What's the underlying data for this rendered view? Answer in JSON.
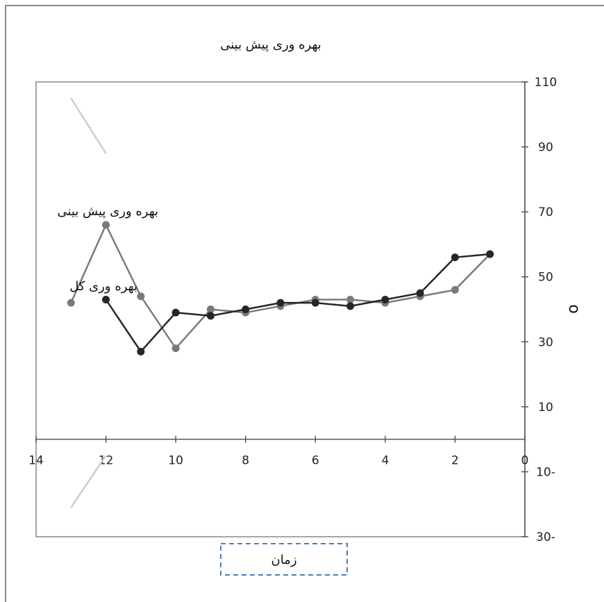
{
  "chart_data": {
    "type": "line",
    "title": "بهره وری پیش بینی",
    "xlabel": "زمان",
    "ylabel": "ο",
    "xlim": [
      0,
      14
    ],
    "ylim": [
      -30,
      110
    ],
    "x_ticks": [
      14,
      12,
      10,
      8,
      6,
      4,
      2,
      0
    ],
    "x_tick_labels": [
      "14",
      "12",
      "10",
      "8",
      "6",
      "4",
      "2",
      "0"
    ],
    "y_ticks": [
      110,
      90,
      70,
      50,
      30,
      10,
      -10,
      -30
    ],
    "y_tick_labels": [
      "110",
      "90",
      "70",
      "50",
      "30",
      "10",
      "10-",
      "30-"
    ],
    "x_reversed": true,
    "y_axis_position": "right",
    "grid": false,
    "series": [
      {
        "name": "بهره وری پیش بینی",
        "color": "#7a7a7a",
        "points": [
          [
            13,
            42
          ],
          [
            12,
            66
          ],
          [
            11,
            44
          ],
          [
            10,
            28
          ],
          [
            9,
            40
          ],
          [
            8,
            39
          ],
          [
            7,
            41
          ],
          [
            6,
            43
          ],
          [
            5,
            43
          ],
          [
            4,
            42
          ],
          [
            3,
            44
          ],
          [
            2,
            46
          ],
          [
            1,
            57
          ]
        ]
      },
      {
        "name": "بهره وری کل",
        "color": "#262626",
        "points": [
          [
            12,
            43
          ],
          [
            11,
            27
          ],
          [
            10,
            39
          ],
          [
            9,
            38
          ],
          [
            8,
            40
          ],
          [
            7,
            42
          ],
          [
            6,
            42
          ],
          [
            5,
            41
          ],
          [
            4,
            43
          ],
          [
            3,
            45
          ],
          [
            2,
            56
          ],
          [
            1,
            57
          ]
        ]
      }
    ],
    "trend_lines": [
      {
        "color": "#cccccc",
        "from": [
          13,
          105
        ],
        "to": [
          12,
          88
        ]
      },
      {
        "color": "#cccccc",
        "from": [
          13,
          -21
        ],
        "to": [
          12,
          -5
        ]
      }
    ]
  }
}
